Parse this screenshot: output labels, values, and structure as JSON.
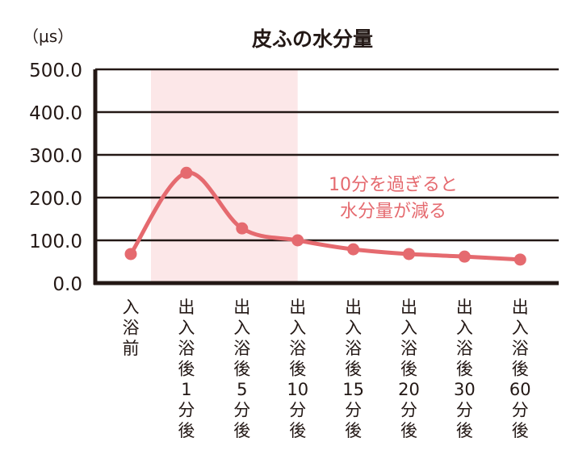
{
  "chart_data": {
    "type": "line",
    "title": "皮ふの水分量",
    "ylabel": "（μs）",
    "xlabel": "",
    "ylim": [
      0,
      500
    ],
    "yticks": [
      "0.0",
      "100.0",
      "200.0",
      "300.0",
      "400.0",
      "500.0"
    ],
    "grid": true,
    "categories": [
      [
        "入",
        "浴",
        "前"
      ],
      [
        "出",
        "入",
        "浴",
        "後",
        "1",
        "分",
        "後"
      ],
      [
        "出",
        "入",
        "浴",
        "後",
        "5",
        "分",
        "後"
      ],
      [
        "出",
        "入",
        "浴",
        "後",
        "10",
        "分",
        "後"
      ],
      [
        "出",
        "入",
        "浴",
        "後",
        "15",
        "分",
        "後"
      ],
      [
        "出",
        "入",
        "浴",
        "後",
        "20",
        "分",
        "後"
      ],
      [
        "出",
        "入",
        "浴",
        "後",
        "30",
        "分",
        "後"
      ],
      [
        "出",
        "入",
        "浴",
        "後",
        "60",
        "分",
        "後"
      ]
    ],
    "series": [
      {
        "name": "皮ふの水分量",
        "values": [
          68,
          258,
          128,
          100,
          79,
          68,
          62,
          55
        ],
        "color": "#e56a6f"
      }
    ],
    "highlight_range": {
      "from_index": 1,
      "to_index": 3,
      "color": "#fce7e8"
    },
    "annotation": [
      "10分を過ぎると",
      "水分量が減る"
    ],
    "annotation_color": "#e56a6f"
  }
}
